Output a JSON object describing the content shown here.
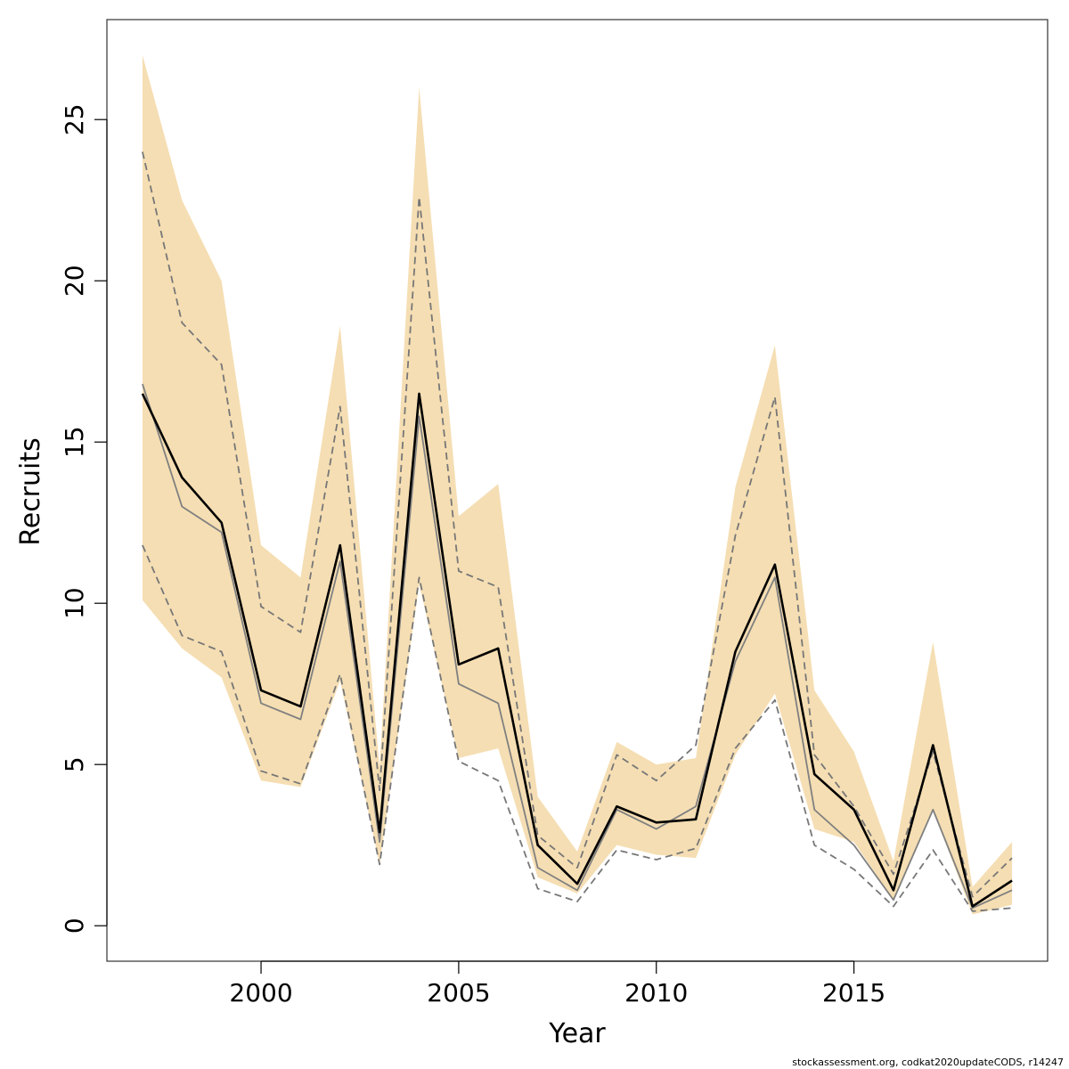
{
  "chart_data": {
    "type": "line",
    "title": "",
    "xlabel": "Year",
    "ylabel": "Recruits",
    "xlim": [
      1996.1,
      2019.9
    ],
    "ylim": [
      -1.1,
      28.1
    ],
    "x_ticks": [
      2000,
      2005,
      2010,
      2015
    ],
    "y_ticks": [
      0,
      5,
      10,
      15,
      20,
      25
    ],
    "grid": false,
    "legend": "none",
    "colors": {
      "band": "#f5deb3",
      "main_line": "#000000",
      "grey_line": "#808080",
      "dashed_line": "#777777"
    },
    "x": [
      1997,
      1998,
      1999,
      2000,
      2001,
      2002,
      2003,
      2004,
      2005,
      2006,
      2007,
      2008,
      2009,
      2010,
      2011,
      2012,
      2013,
      2014,
      2015,
      2016,
      2017,
      2018,
      2019
    ],
    "series": [
      {
        "role": "band_upper",
        "values": [
          27.0,
          22.5,
          20.0,
          11.8,
          10.8,
          18.6,
          4.9,
          26.0,
          12.7,
          13.7,
          4.0,
          2.3,
          5.7,
          5.0,
          5.2,
          13.6,
          18.0,
          7.3,
          5.4,
          2.0,
          8.8,
          1.2,
          2.6
        ]
      },
      {
        "role": "band_lower",
        "values": [
          10.1,
          8.6,
          7.7,
          4.5,
          4.3,
          7.6,
          1.9,
          10.6,
          5.2,
          5.5,
          1.5,
          1.0,
          2.5,
          2.2,
          2.1,
          5.3,
          7.2,
          3.0,
          2.6,
          0.8,
          3.6,
          0.35,
          0.65
        ]
      },
      {
        "role": "dashed_upper",
        "values": [
          24.0,
          18.7,
          17.4,
          9.9,
          9.1,
          16.1,
          4.2,
          22.6,
          11.0,
          10.5,
          2.8,
          1.8,
          5.3,
          4.5,
          5.6,
          12.1,
          16.4,
          5.3,
          3.7,
          1.6,
          5.4,
          0.9,
          2.1
        ]
      },
      {
        "role": "dashed_lower",
        "values": [
          11.8,
          9.0,
          8.5,
          4.8,
          4.4,
          7.8,
          1.9,
          10.8,
          5.1,
          4.5,
          1.15,
          0.75,
          2.35,
          2.05,
          2.4,
          5.5,
          7.0,
          2.5,
          1.75,
          0.6,
          2.35,
          0.45,
          0.55
        ]
      },
      {
        "role": "grey_estimate",
        "values": [
          16.8,
          13.0,
          12.2,
          6.9,
          6.4,
          11.3,
          2.6,
          15.8,
          7.5,
          6.9,
          1.8,
          1.1,
          3.6,
          3.0,
          3.7,
          8.2,
          10.8,
          3.6,
          2.5,
          0.8,
          3.6,
          0.55,
          1.1
        ]
      },
      {
        "role": "main_estimate",
        "values": [
          16.5,
          13.9,
          12.5,
          7.3,
          6.8,
          11.8,
          2.9,
          16.5,
          8.1,
          8.6,
          2.5,
          1.3,
          3.7,
          3.2,
          3.3,
          8.5,
          11.2,
          4.7,
          3.6,
          1.1,
          5.6,
          0.6,
          1.4
        ]
      }
    ]
  },
  "caption": "stockassessment.org, codkat2020updateCODS, r14247"
}
